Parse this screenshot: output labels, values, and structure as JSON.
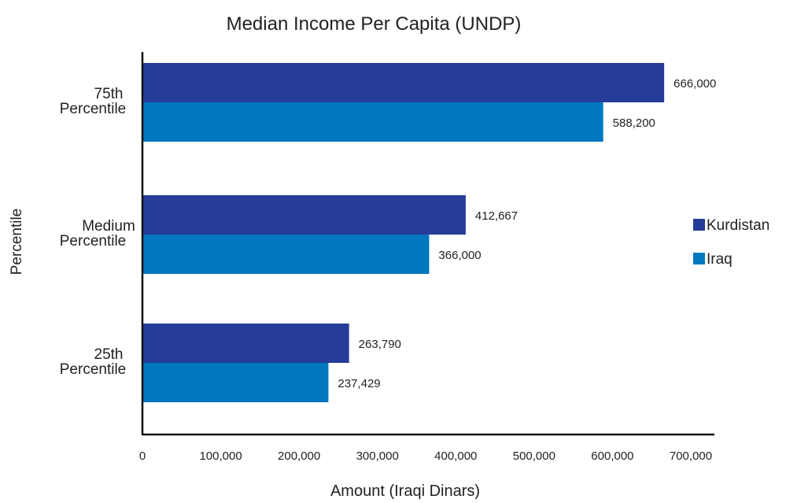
{
  "chart_data": {
    "type": "bar",
    "orientation": "horizontal",
    "title": "Median Income Per Capita (UNDP)",
    "xlabel": "Amount (Iraqi Dinars)",
    "ylabel": "Percentile",
    "xlim": [
      0,
      700000
    ],
    "x_ticks": [
      "0",
      "100,000",
      "200,000",
      "300,000",
      "400,000",
      "500,000",
      "600,000",
      "700,000"
    ],
    "categories": [
      {
        "line1": "75th",
        "line2": "Percentile"
      },
      {
        "line1": "Medium",
        "line2": "Percentile"
      },
      {
        "line1": "25th",
        "line2": "Percentile"
      }
    ],
    "series": [
      {
        "name": "Kurdistan",
        "color": "#253D98",
        "values": [
          666000,
          412667,
          263790
        ],
        "labels": [
          "666,000",
          "412,667",
          "263,790"
        ]
      },
      {
        "name": "Iraq",
        "color": "#0077BE",
        "values": [
          588200,
          366000,
          237429
        ],
        "labels": [
          "588,200",
          "366,000",
          "237,429"
        ]
      }
    ],
    "legend_position": "right",
    "grid": false
  }
}
